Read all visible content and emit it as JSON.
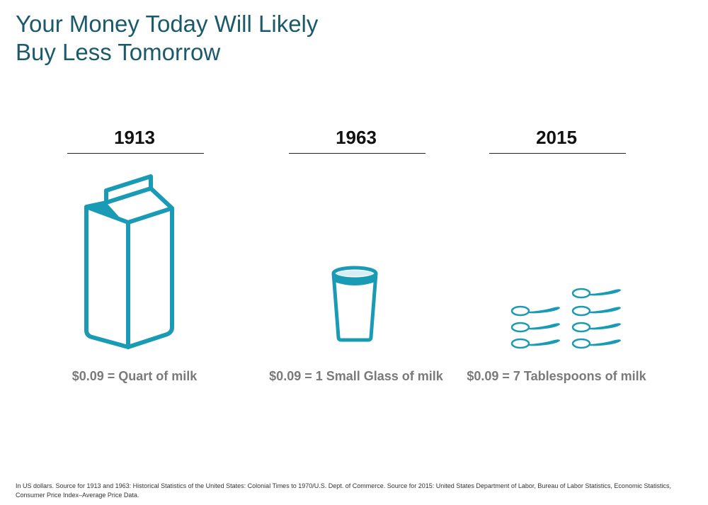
{
  "title": {
    "line1": "Your Money Today Will Likely",
    "line2": "Buy Less Tomorrow"
  },
  "columns": [
    {
      "year": "1913",
      "caption": "$0.09 = Quart of milk",
      "icon": "milk-carton-icon"
    },
    {
      "year": "1963",
      "caption": "$0.09 = 1 Small Glass of milk",
      "icon": "milk-glass-icon"
    },
    {
      "year": "2015",
      "caption": "$0.09 = 7 Tablespoons of milk",
      "icon": "tablespoon-icon"
    }
  ],
  "footnote": "In US dollars. Source for 1913 and 1963: Historical Statistics of the United States: Colonial Times to 1970/U.S. Dept. of Commerce. Source for 2015: United States Department of Labor, Bureau of Labor Statistics, Economic Statistics, Consumer Price Index–Average Price Data.",
  "colors": {
    "accent": "#1a9bb5",
    "title": "#1a5a6a",
    "caption": "#7a7a7a"
  }
}
